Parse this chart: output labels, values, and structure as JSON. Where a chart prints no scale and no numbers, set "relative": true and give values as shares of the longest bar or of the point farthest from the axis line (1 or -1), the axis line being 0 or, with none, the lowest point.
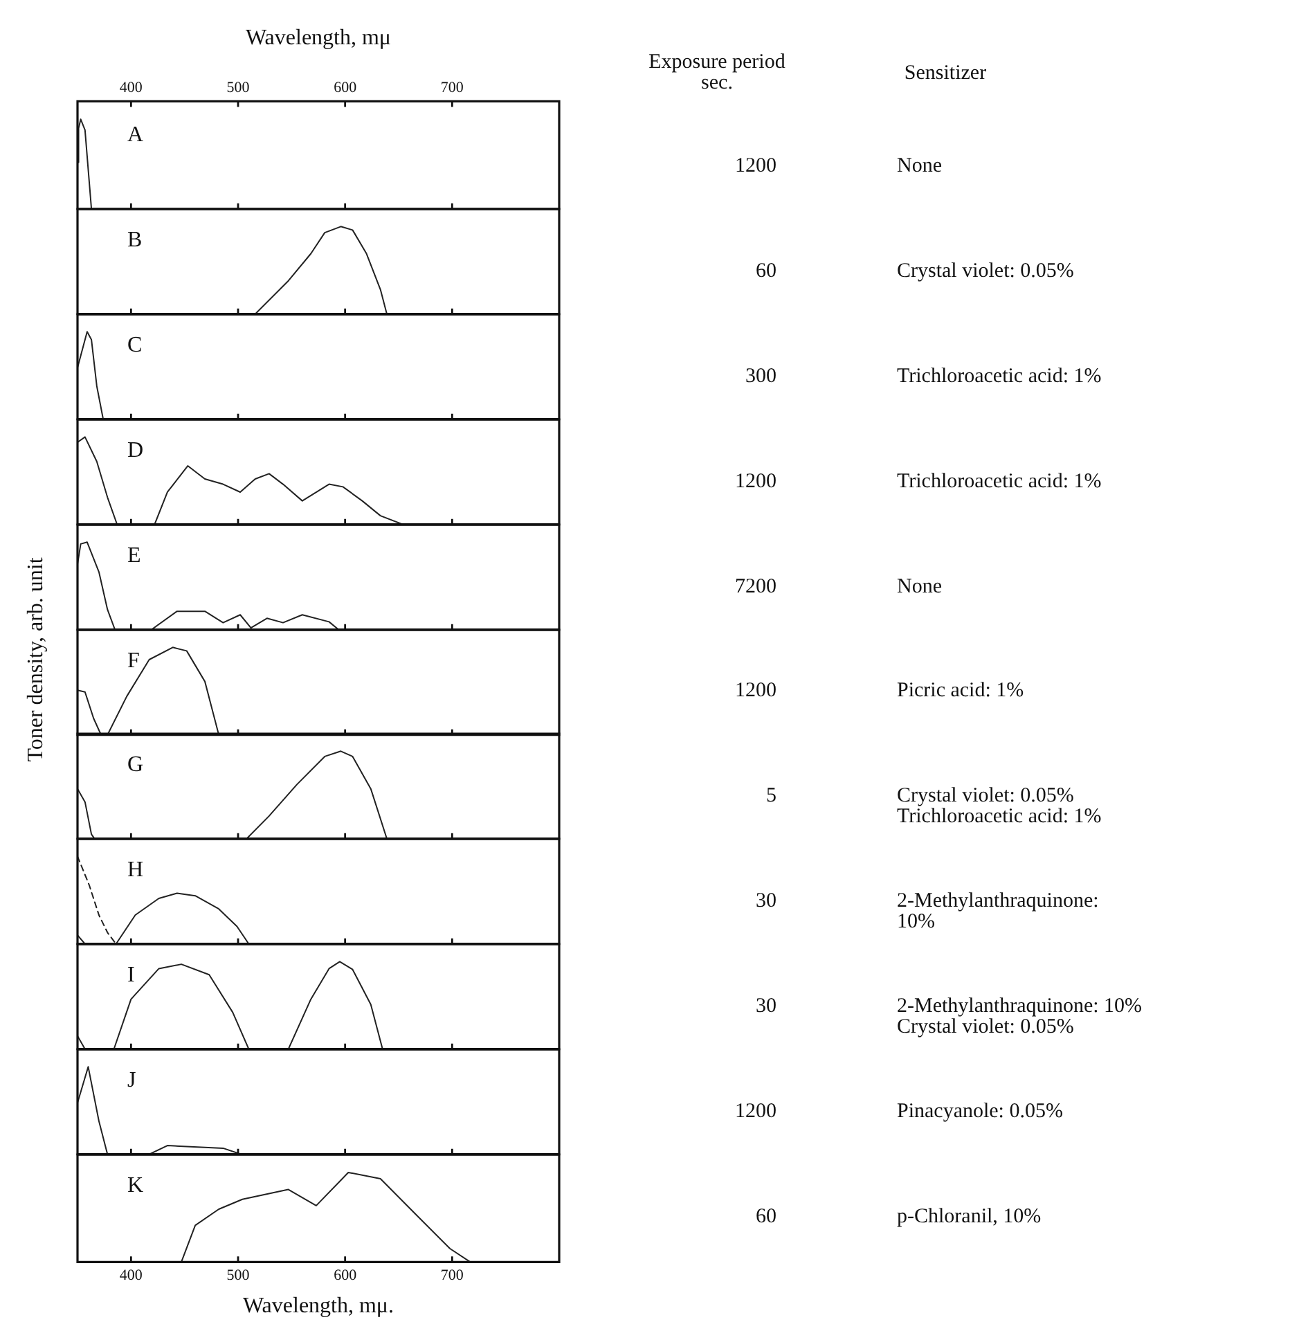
{
  "chart_data": [
    {
      "type": "line",
      "title": "A",
      "relative": true,
      "xlim": [
        350,
        800
      ],
      "xticks": [
        400,
        500,
        600,
        700
      ],
      "xlabel": "Wavelength, mμ",
      "annotations": [
        "Exposure period\nsec.",
        "Sensitizer",
        "1200",
        "None"
      ],
      "series": [
        {
          "color": "#222222",
          "x": [
            350,
            351,
            353,
            357,
            363
          ],
          "values": [
            0.52,
            0.9,
            1,
            0.88,
            0
          ]
        }
      ]
    },
    {
      "type": "line",
      "title": "B",
      "relative": true,
      "xlim": [
        350,
        800
      ],
      "xticks": [
        400,
        500,
        600,
        700
      ],
      "tick_labels": false,
      "annotations": [
        "60",
        "Crystal violet: 0.05%"
      ],
      "series": [
        {
          "color": "#222222",
          "x": [
            516,
            547,
            568,
            581,
            596,
            607,
            620,
            633,
            639
          ],
          "values": [
            0,
            0.38,
            0.69,
            0.93,
            1,
            0.96,
            0.69,
            0.28,
            0
          ]
        }
      ]
    },
    {
      "type": "line",
      "title": "C",
      "relative": true,
      "xlim": [
        350,
        800
      ],
      "xticks": [
        400,
        500,
        600,
        700
      ],
      "tick_labels": false,
      "annotations": [
        "300",
        "Trichloroacetic acid: 1%"
      ],
      "series": [
        {
          "color": "#222222",
          "x": [
            350,
            359,
            363,
            368,
            374
          ],
          "values": [
            0.59,
            1,
            0.91,
            0.38,
            0
          ]
        }
      ]
    },
    {
      "type": "line",
      "title": "D",
      "relative": true,
      "xlim": [
        350,
        800
      ],
      "xticks": [
        400,
        500,
        600,
        700
      ],
      "tick_labels": false,
      "annotations": [
        "1200",
        "Trichloroacetic acid: 1%"
      ],
      "series": [
        {
          "color": "#222222",
          "x": [
            350,
            357,
            368,
            378,
            387,
            422,
            434,
            453,
            469,
            486,
            502,
            516,
            529,
            542,
            560,
            585,
            598,
            616,
            633,
            654
          ],
          "values": [
            0.94,
            1,
            0.72,
            0.31,
            0,
            0,
            0.37,
            0.67,
            0.52,
            0.46,
            0.37,
            0.52,
            0.58,
            0.46,
            0.27,
            0.46,
            0.43,
            0.27,
            0.1,
            0
          ]
        }
      ]
    },
    {
      "type": "line",
      "title": "E",
      "relative": true,
      "xlim": [
        350,
        800
      ],
      "xticks": [
        400,
        500,
        600,
        700
      ],
      "tick_labels": false,
      "annotations": [
        "7200",
        "None"
      ],
      "series": [
        {
          "color": "#222222",
          "x": [
            350,
            353,
            359,
            370,
            378,
            385,
            419,
            443,
            469,
            486,
            502,
            512,
            527,
            542,
            560,
            585,
            594
          ],
          "values": [
            0.75,
            0.98,
            1,
            0.66,
            0.23,
            0,
            0,
            0.21,
            0.21,
            0.08,
            0.17,
            0.02,
            0.13,
            0.08,
            0.17,
            0.09,
            0
          ]
        }
      ]
    },
    {
      "type": "line",
      "title": "F",
      "relative": true,
      "xlim": [
        350,
        800
      ],
      "xticks": [
        400,
        500,
        600,
        700
      ],
      "tick_labels": false,
      "ylabel": "Toner density, arb. unit",
      "annotations": [
        "1200",
        "Picric acid: 1%"
      ],
      "series": [
        {
          "color": "#222222",
          "x": [
            350,
            357,
            365,
            372,
            378,
            396,
            417,
            439,
            452,
            469,
            482
          ],
          "values": [
            0.51,
            0.49,
            0.19,
            0,
            0,
            0.44,
            0.86,
            1,
            0.96,
            0.61,
            0
          ]
        }
      ]
    },
    {
      "type": "line",
      "title": "G",
      "relative": true,
      "xlim": [
        350,
        800
      ],
      "xticks": [
        400,
        500,
        600,
        700
      ],
      "tick_labels": false,
      "annotations": [
        "5",
        "Crystal violet: 0.05%\nTrichloroacetic acid: 1%"
      ],
      "series": [
        {
          "color": "#222222",
          "x": [
            350,
            357,
            363,
            366,
            508,
            529,
            555,
            581,
            596,
            607,
            624,
            639
          ],
          "values": [
            0.57,
            0.42,
            0.05,
            0,
            0,
            0.26,
            0.62,
            0.94,
            1,
            0.94,
            0.57,
            0
          ]
        }
      ]
    },
    {
      "type": "line",
      "title": "H",
      "relative": true,
      "xlim": [
        350,
        800
      ],
      "xticks": [
        400,
        500,
        600,
        700
      ],
      "tick_labels": false,
      "annotations": [
        "30",
        "2-Methylanthraquinone:\n10%"
      ],
      "series": [
        {
          "color": "#222222",
          "x": [
            350,
            357,
            386,
            404,
            426,
            443,
            460,
            482,
            499,
            510
          ],
          "values": [
            0.1,
            0,
            0,
            0.33,
            0.52,
            0.58,
            0.55,
            0.4,
            0.2,
            0
          ]
        },
        {
          "color": "#222222",
          "line_style": "dashed",
          "x": [
            350,
            361,
            370,
            378,
            386
          ],
          "values": [
            1,
            0.67,
            0.33,
            0.13,
            0
          ]
        }
      ]
    },
    {
      "type": "line",
      "title": "I",
      "relative": true,
      "xlim": [
        350,
        800
      ],
      "xticks": [
        400,
        500,
        600,
        700
      ],
      "tick_labels": false,
      "annotations": [
        "30",
        "2-Methylanthraquinone: 10%\nCrystal violet: 0.05%"
      ],
      "series": [
        {
          "color": "#222222",
          "x": [
            350,
            357,
            384,
            400,
            426,
            447,
            473,
            495,
            510,
            547,
            568,
            585,
            595,
            607,
            624,
            635
          ],
          "values": [
            0.15,
            0,
            0,
            0.57,
            0.92,
            0.97,
            0.85,
            0.42,
            0,
            0,
            0.57,
            0.92,
            1,
            0.91,
            0.51,
            0
          ]
        }
      ]
    },
    {
      "type": "line",
      "title": "J",
      "relative": true,
      "xlim": [
        350,
        800
      ],
      "xticks": [
        400,
        500,
        600,
        700
      ],
      "tick_labels": false,
      "annotations": [
        "1200",
        "Pinacyanole: 0.05%"
      ],
      "series": [
        {
          "color": "#222222",
          "x": [
            350,
            360,
            370,
            378,
            417,
            434,
            486,
            503
          ],
          "values": [
            0.59,
            1,
            0.38,
            0,
            0,
            0.1,
            0.07,
            0
          ]
        }
      ]
    },
    {
      "type": "line",
      "title": "K",
      "relative": true,
      "xlim": [
        350,
        800
      ],
      "xticks": [
        400,
        500,
        600,
        700
      ],
      "xlabel": "Wavelength, mμ.",
      "tick_labels": "x",
      "annotations": [
        "60",
        "p-Chloranil, 10%"
      ],
      "series": [
        {
          "color": "#222222",
          "x": [
            447,
            460,
            482,
            504,
            547,
            573,
            603,
            633,
            667,
            698,
            717
          ],
          "values": [
            0,
            0.41,
            0.59,
            0.7,
            0.81,
            0.63,
            1,
            0.93,
            0.52,
            0.15,
            0
          ]
        }
      ]
    }
  ]
}
